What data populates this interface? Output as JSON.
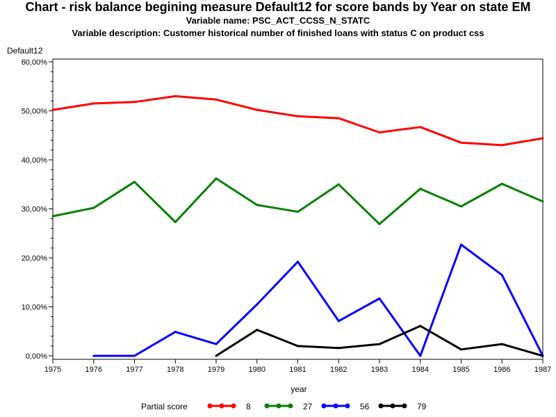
{
  "header": {
    "title": "Chart - risk balance begining measure Default12 for score bands by Year on state EM",
    "variable_name": "Variable name: PSC_ACT_CCSS_N_STATC",
    "variable_description": "Variable description: Customer historical number of finished loans with status C on product css"
  },
  "chart_data": {
    "type": "line",
    "title": "Chart - risk balance begining measure Default12 for score bands by Year on state EM",
    "xlabel": "year",
    "ylabel": "Default12",
    "x": [
      1975,
      1976,
      1977,
      1978,
      1979,
      1980,
      1981,
      1982,
      1983,
      1984,
      1985,
      1986,
      1987
    ],
    "xlim": [
      1975,
      1987
    ],
    "ylim": [
      0,
      60
    ],
    "y_ticks": [
      0,
      10,
      20,
      30,
      40,
      50,
      60
    ],
    "y_tick_labels": [
      "0,00%",
      "10,00%",
      "20,00%",
      "30,00%",
      "40,00%",
      "50,00%",
      "60,00%"
    ],
    "grid": false,
    "legend_title": "Partial score",
    "legend_placement": "bottom",
    "series": [
      {
        "name": "8",
        "color": "#ff0000",
        "x": [
          1975,
          1976,
          1977,
          1978,
          1979,
          1980,
          1981,
          1982,
          1983,
          1984,
          1985,
          1986,
          1987
        ],
        "values": [
          50.2,
          51.5,
          51.8,
          53.0,
          52.3,
          50.2,
          48.9,
          48.5,
          45.6,
          46.7,
          43.5,
          43.0,
          44.4
        ]
      },
      {
        "name": "27",
        "color": "#008000",
        "x": [
          1975,
          1976,
          1977,
          1978,
          1979,
          1980,
          1981,
          1982,
          1983,
          1984,
          1985,
          1986,
          1987
        ],
        "values": [
          28.5,
          30.2,
          35.5,
          27.3,
          36.2,
          30.8,
          29.4,
          35.0,
          26.9,
          34.1,
          30.5,
          35.1,
          31.5
        ]
      },
      {
        "name": "56",
        "color": "#0000ff",
        "x": [
          1976,
          1977,
          1978,
          1979,
          1980,
          1981,
          1982,
          1983,
          1984,
          1985,
          1986,
          1987
        ],
        "values": [
          0.0,
          0.0,
          4.9,
          2.4,
          10.5,
          19.2,
          7.1,
          11.7,
          0.0,
          22.7,
          16.5,
          0.0
        ]
      },
      {
        "name": "79",
        "color": "#000000",
        "x": [
          1979,
          1980,
          1981,
          1982,
          1983,
          1984,
          1985,
          1986,
          1987
        ],
        "values": [
          0.0,
          5.3,
          2.0,
          1.6,
          2.4,
          6.1,
          1.3,
          2.4,
          0.0
        ]
      }
    ]
  }
}
